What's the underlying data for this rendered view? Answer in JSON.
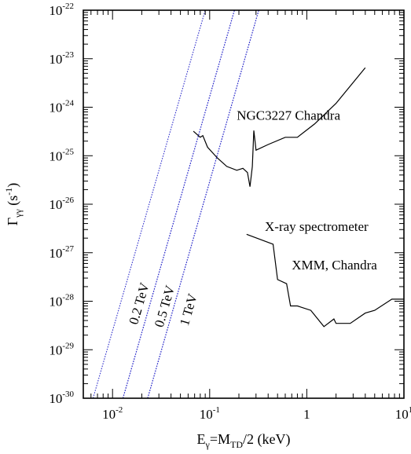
{
  "chart_data": {
    "type": "line",
    "x_scale": "log",
    "y_scale": "log",
    "xlim": [
      0.005,
      10
    ],
    "ylim": [
      1e-30,
      1e-22
    ],
    "xlabel": {
      "pre": "E",
      "sub1": "γ",
      "mid": "=M",
      "sub2": "TD",
      "post": "/2 (keV)"
    },
    "ylabel": {
      "pre": "Γ",
      "sub": "γγ",
      "mid": " (s",
      "sup": "-1",
      "post": ")"
    },
    "x_ticks": [
      {
        "base": "10",
        "exp": "-2",
        "value": 0.01
      },
      {
        "base": "10",
        "exp": "-1",
        "value": 0.1
      },
      {
        "base": "10",
        "exp": "0",
        "label": "1",
        "value": 1
      },
      {
        "base": "10",
        "exp": "1",
        "value": 10
      }
    ],
    "y_ticks": [
      {
        "base": "10",
        "exp": "-30",
        "value": 1e-30
      },
      {
        "base": "10",
        "exp": "-29",
        "value": 1e-29
      },
      {
        "base": "10",
        "exp": "-28",
        "value": 1e-28
      },
      {
        "base": "10",
        "exp": "-27",
        "value": 1e-27
      },
      {
        "base": "10",
        "exp": "-26",
        "value": 1e-26
      },
      {
        "base": "10",
        "exp": "-25",
        "value": 1e-25
      },
      {
        "base": "10",
        "exp": "-24",
        "value": 1e-24
      },
      {
        "base": "10",
        "exp": "-23",
        "value": 1e-23
      },
      {
        "base": "10",
        "exp": "-22",
        "value": 1e-22
      }
    ],
    "series": [
      {
        "color": "#000000",
        "points": [
          [
            0.068,
            3.2e-25
          ],
          [
            0.08,
            2.4e-25
          ],
          [
            0.085,
            2.6e-25
          ],
          [
            0.095,
            1.5e-25
          ],
          [
            0.12,
            9e-26
          ],
          [
            0.15,
            6e-26
          ],
          [
            0.19,
            5e-26
          ],
          [
            0.22,
            5.5e-26
          ],
          [
            0.245,
            4.5e-26
          ],
          [
            0.26,
            2.3e-26
          ],
          [
            0.275,
            6e-26
          ],
          [
            0.285,
            3.3e-25
          ],
          [
            0.3,
            1.3e-25
          ],
          [
            0.4,
            1.7e-25
          ],
          [
            0.6,
            2.4e-25
          ],
          [
            0.8,
            2.4e-25
          ],
          [
            1.2,
            4.5e-25
          ],
          [
            2,
            1.2e-24
          ],
          [
            4,
            6.5e-24
          ]
        ]
      },
      {
        "color": "#000000",
        "points": [
          [
            0.24,
            2.4e-27
          ],
          [
            0.45,
            1.5e-27
          ],
          [
            0.5,
            2.8e-28
          ],
          [
            0.62,
            2.3e-28
          ],
          [
            0.68,
            8e-29
          ],
          [
            0.8,
            8e-29
          ],
          [
            1.1,
            6.5e-29
          ],
          [
            1.5,
            3e-29
          ],
          [
            1.9,
            4.3e-29
          ],
          [
            2.0,
            3.5e-29
          ],
          [
            2.8,
            3.5e-29
          ],
          [
            4,
            5.7e-29
          ],
          [
            5,
            6.5e-29
          ],
          [
            7.5,
            1.1e-28
          ],
          [
            10,
            1.1e-28
          ]
        ]
      }
    ],
    "bands": [
      {
        "label": "0.2 TeV",
        "color": "#3333cc",
        "edges": [
          [
            [
              0.0063,
              1e-30
            ],
            [
              0.09,
              1e-22
            ]
          ],
          [
            [
              0.0128,
              1e-30
            ],
            [
              0.18,
              1e-22
            ]
          ]
        ]
      },
      {
        "label": "0.5 TeV",
        "color": "#3333cc",
        "edges": [
          [
            [
              0.0128,
              1e-30
            ],
            [
              0.18,
              1e-22
            ]
          ],
          [
            [
              0.023,
              1e-30
            ],
            [
              0.32,
              1e-22
            ]
          ]
        ]
      },
      {
        "label": "1 TeV",
        "color": "#3333cc",
        "edges": [
          [
            [
              0.023,
              1e-30
            ],
            [
              0.32,
              1e-22
            ]
          ]
        ]
      }
    ],
    "band_labels": [
      {
        "text": "0.2 TeV",
        "at": [
          0.018,
          3.2e-29
        ]
      },
      {
        "text": "0.5 TeV",
        "at": [
          0.033,
          2.8e-29
        ]
      },
      {
        "text": "1 TeV",
        "at": [
          0.06,
          3e-29
        ]
      }
    ],
    "annotations": [
      {
        "text": "NGC3227 Chandra",
        "at": [
          0.19,
          5.5e-25
        ]
      },
      {
        "text": "X-ray spectrometer",
        "at": [
          0.37,
          2.8e-27
        ]
      },
      {
        "text": "XMM, Chandra",
        "at": [
          0.7,
          4.5e-28
        ]
      }
    ]
  }
}
